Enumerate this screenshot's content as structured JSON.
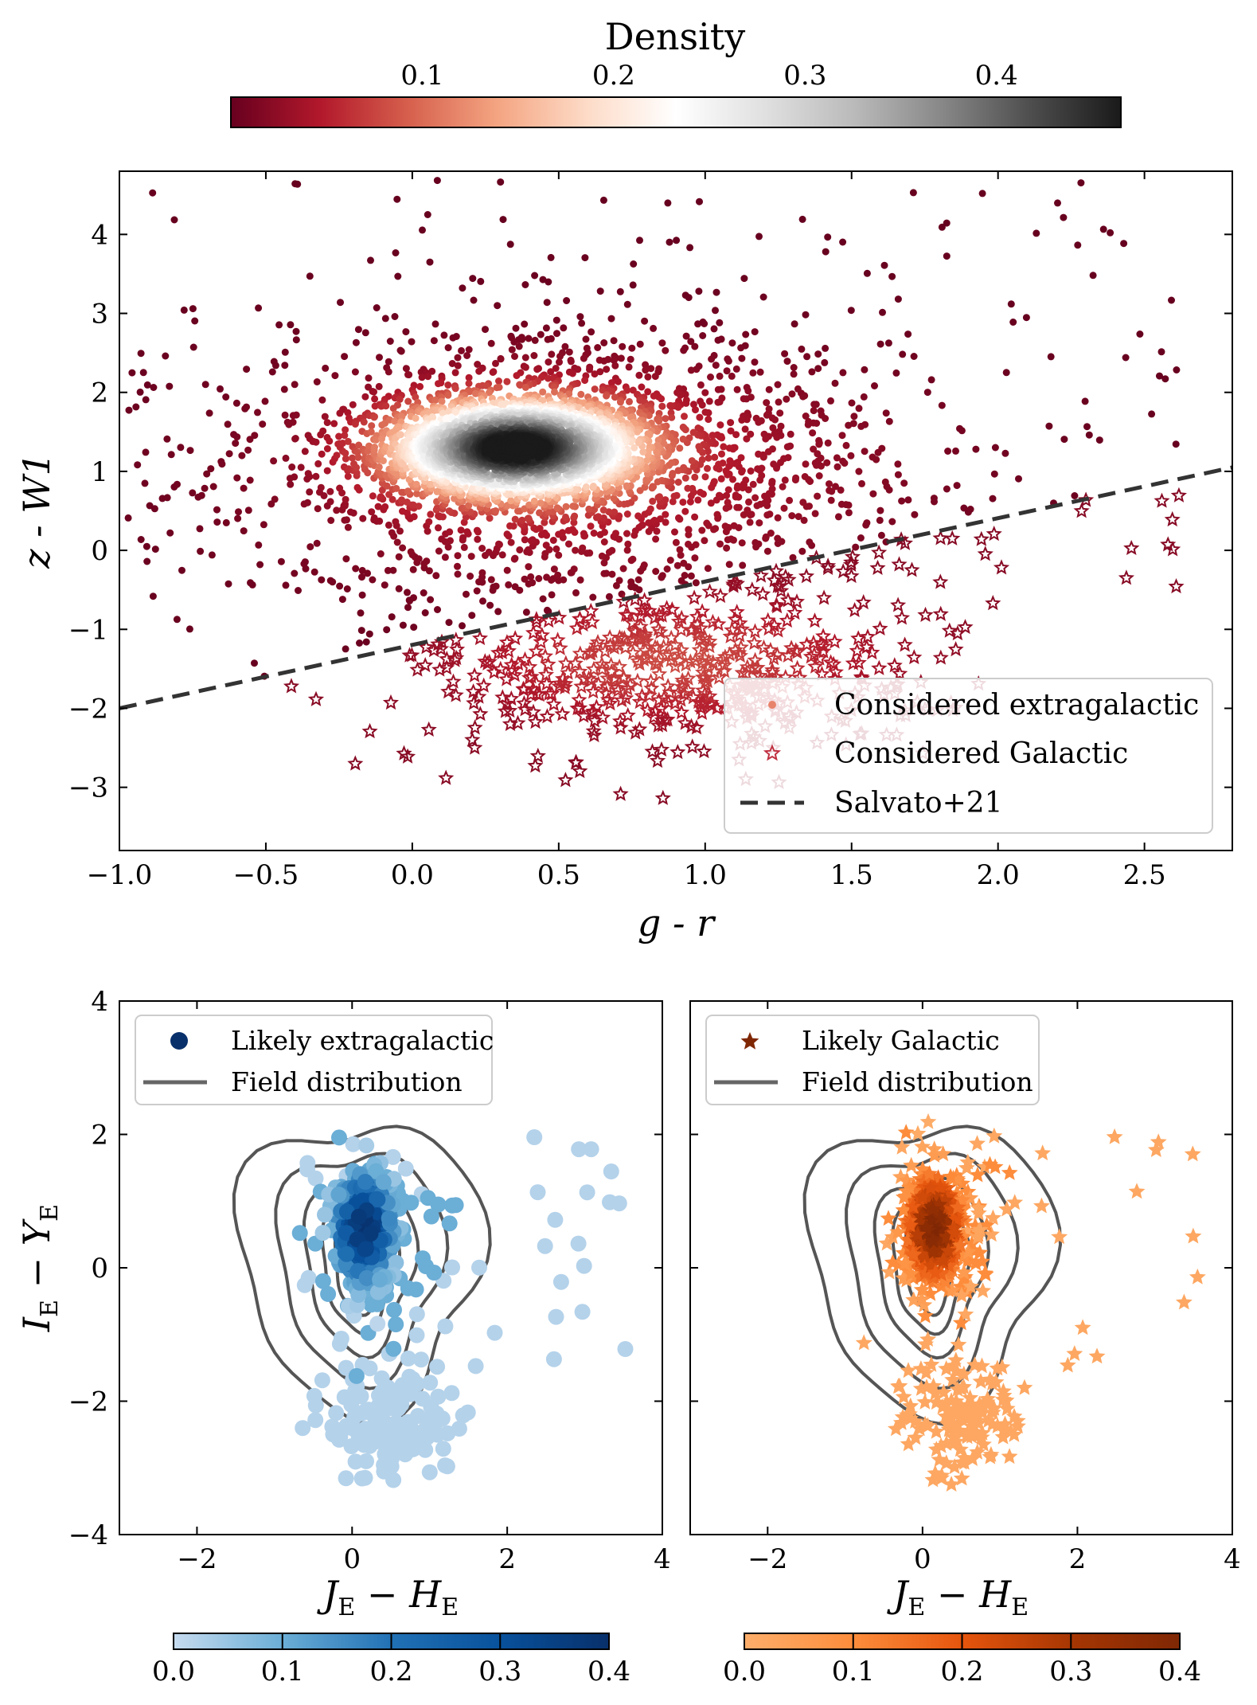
{
  "top_colorbar": {
    "title": "Density",
    "ticks": [
      "0.1",
      "0.2",
      "0.3",
      "0.4"
    ],
    "tick_values": [
      0.1,
      0.2,
      0.3,
      0.4
    ],
    "range": [
      0.0,
      0.465
    ],
    "cmap": [
      "#67001f",
      "#b2182b",
      "#d6604d",
      "#f4a582",
      "#fddbc7",
      "#ffffff",
      "#e0e0e0",
      "#bababa",
      "#878787",
      "#4d4d4d",
      "#1a1a1a"
    ]
  },
  "chart_data": [
    {
      "type": "scatter",
      "title": "",
      "xlabel": "g - r",
      "ylabel": "z - W1",
      "xlim": [
        -1.0,
        2.8
      ],
      "ylim": [
        -3.8,
        4.8
      ],
      "xticks": [
        -1.0,
        -0.5,
        0.0,
        0.5,
        1.0,
        1.5,
        2.0,
        2.5
      ],
      "xtick_labels": [
        "−1.0",
        "−0.5",
        "0.0",
        "0.5",
        "1.0",
        "1.5",
        "2.0",
        "2.5"
      ],
      "yticks": [
        -3,
        -2,
        -1,
        0,
        1,
        2,
        3,
        4
      ],
      "ytick_labels": [
        "−3",
        "−2",
        "−1",
        "0",
        "1",
        "2",
        "3",
        "4"
      ],
      "series": [
        {
          "name": "Considered extragalactic",
          "marker": "dot",
          "center": [
            0.35,
            1.3
          ],
          "note": "dense cloud, color = density"
        },
        {
          "name": "Considered Galactic",
          "marker": "star",
          "center": [
            0.9,
            -1.6
          ],
          "note": "points below Salvato+21 line"
        },
        {
          "name": "Salvato+21",
          "marker": "dashed-line",
          "x": [
            -1.0,
            2.8
          ],
          "y": [
            -2.0,
            1.05
          ]
        }
      ],
      "legend": {
        "location": "lower-right",
        "entries": [
          "Considered extragalactic",
          "Considered Galactic",
          "Salvato+21"
        ]
      }
    },
    {
      "type": "scatter",
      "xlabel": "J_E − H_E",
      "ylabel": "I_E − Y_E",
      "xlim": [
        -3,
        4
      ],
      "ylim": [
        -4,
        4
      ],
      "xticks": [
        -2,
        0,
        2,
        4
      ],
      "xtick_labels": [
        "−2",
        "0",
        "2",
        "4"
      ],
      "yticks": [
        -4,
        -2,
        0,
        2,
        4
      ],
      "ytick_labels": [
        "−4",
        "−2",
        "0",
        "2",
        "4"
      ],
      "series": [
        {
          "name": "Likely extragalactic",
          "marker": "dot",
          "color": "#08306b",
          "center": [
            0.15,
            0.6
          ]
        },
        {
          "name": "Field distribution",
          "marker": "contour",
          "color": "#555555"
        }
      ],
      "legend": {
        "location": "top-left",
        "entries": [
          "Likely extragalactic",
          "Field distribution"
        ]
      },
      "colorbar": {
        "ticks": [
          "0.0",
          "0.1",
          "0.2",
          "0.3",
          "0.4"
        ],
        "range": [
          0.0,
          0.4
        ],
        "cmap": [
          "#c6dbef",
          "#6baed6",
          "#2171b5",
          "#08519c",
          "#08306b"
        ]
      }
    },
    {
      "type": "scatter",
      "xlabel": "J_E − H_E",
      "ylabel": "",
      "xlim": [
        -3,
        4
      ],
      "ylim": [
        -4,
        4
      ],
      "xticks": [
        -2,
        0,
        2,
        4
      ],
      "xtick_labels": [
        "−2",
        "0",
        "2",
        "4"
      ],
      "series": [
        {
          "name": "Likely Galactic",
          "marker": "star",
          "color": "#7f2704",
          "center": [
            0.15,
            0.6
          ]
        },
        {
          "name": "Field distribution",
          "marker": "contour",
          "color": "#555555"
        }
      ],
      "legend": {
        "location": "top-left",
        "entries": [
          "Likely Galactic",
          "Field distribution"
        ]
      },
      "colorbar": {
        "ticks": [
          "0.0",
          "0.1",
          "0.2",
          "0.3",
          "0.4"
        ],
        "range": [
          0.0,
          0.4
        ],
        "cmap": [
          "#fdae6b",
          "#fd8d3c",
          "#e6550d",
          "#a63603",
          "#7f2704"
        ]
      }
    }
  ],
  "labels": {
    "top_x": "g - r",
    "top_y": "z - W1",
    "bottom_x_main": "J",
    "bottom_x_sub": "E",
    "bottom_x_mid": " − ",
    "bottom_x_main2": "H",
    "bottom_x_sub2": "E",
    "bottom_y_main": "I",
    "bottom_y_sub": "E",
    "bottom_y_mid": " − ",
    "bottom_y_main2": "Y",
    "bottom_y_sub2": "E"
  }
}
